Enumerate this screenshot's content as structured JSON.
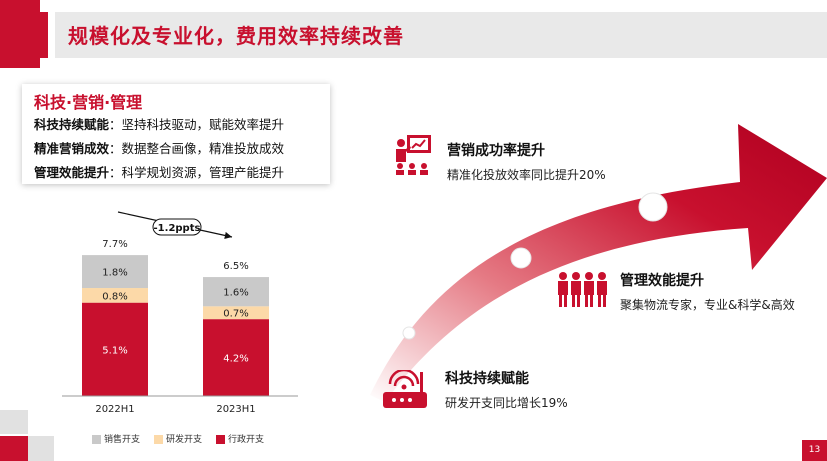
{
  "header": {
    "title": "规模化及专业化，费用效率持续改善"
  },
  "box": {
    "title": "科技·营销·管理",
    "lines": [
      {
        "label": "科技持续赋能",
        "text": "：坚持科技驱动，赋能效率提升"
      },
      {
        "label": "精准营销成效",
        "text": "：数据整合画像，精准投放成效"
      },
      {
        "label": "管理效能提升",
        "text": "：科学规划资源，管理产能提升"
      }
    ]
  },
  "chart_data": {
    "type": "bar",
    "stacked": true,
    "categories": [
      "2022H1",
      "2023H1"
    ],
    "series": [
      {
        "name": "行政开支",
        "values": [
          5.1,
          4.2
        ],
        "color": "#c8102e"
      },
      {
        "name": "研发开支",
        "values": [
          0.8,
          0.7
        ],
        "color": "#fcd9a8"
      },
      {
        "name": "销售开支",
        "values": [
          1.8,
          1.6
        ],
        "color": "#c9c9c9"
      }
    ],
    "totals": [
      "7.7%",
      "6.5%"
    ],
    "labels": [
      [
        "5.1%",
        "0.8%",
        "1.8%"
      ],
      [
        "4.2%",
        "0.7%",
        "1.6%"
      ]
    ],
    "annotation": "-1.2ppts",
    "legend_order": [
      "销售开支",
      "研发开支",
      "行政开支"
    ]
  },
  "features": [
    {
      "title": "营销成功率提升",
      "desc": "精准化投放效率同比提升20%",
      "icon": "presentation-icon"
    },
    {
      "title": "管理效能提升",
      "desc": "聚集物流专家，专业&科学&高效",
      "icon": "team-icon"
    },
    {
      "title": "科技持续赋能",
      "desc": "研发开支同比增长19%",
      "icon": "router-icon"
    }
  ],
  "page_number": "13",
  "colors": {
    "accent": "#c8102e",
    "gray": "#c9c9c9",
    "peach": "#fcd9a8"
  }
}
